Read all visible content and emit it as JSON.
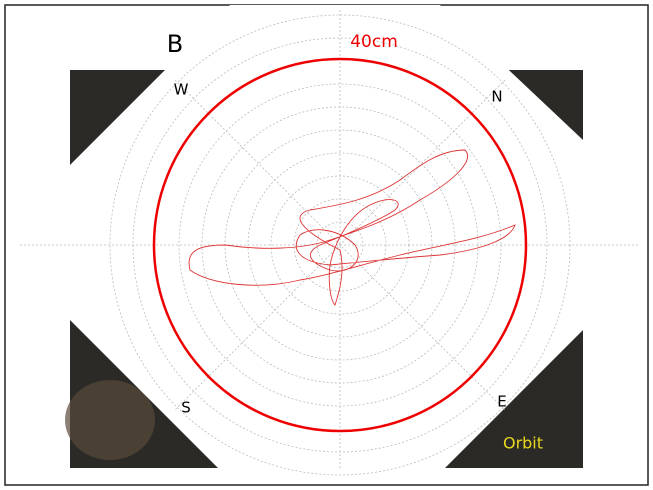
{
  "title": "B",
  "ring_label": "40cm",
  "directions": {
    "west": "W",
    "north": "N",
    "south": "S",
    "east": "E"
  },
  "caption": "Orbit"
}
